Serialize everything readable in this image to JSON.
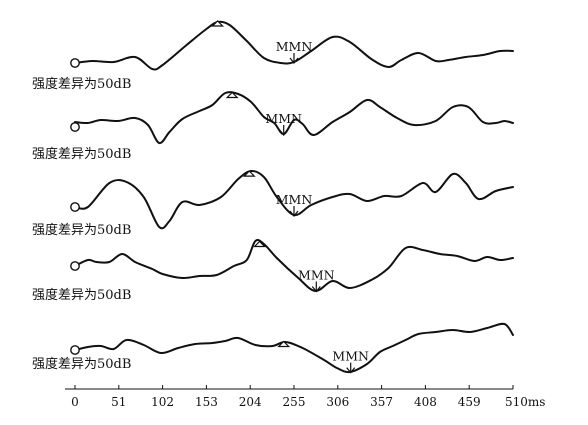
{
  "chart_data": {
    "type": "line",
    "xlabel": "",
    "x_unit": "ms",
    "ylabel": "",
    "xlim": [
      0,
      510
    ],
    "ticks": [
      0,
      51,
      102,
      153,
      204,
      255,
      306,
      357,
      408,
      459,
      510
    ],
    "tick_labels": [
      "0",
      "51",
      "102",
      "153",
      "204",
      "255",
      "306",
      "357",
      "408",
      "459",
      "510ms"
    ],
    "grid": false,
    "series": [
      {
        "label": "强度差异为50dB",
        "mmn_label": "MMN",
        "mmn_ms": 255,
        "peak_ms": 166,
        "points": [
          [
            0,
            0
          ],
          [
            20,
            -2
          ],
          [
            45,
            -1
          ],
          [
            70,
            -6
          ],
          [
            90,
            6
          ],
          [
            102,
            2
          ],
          [
            130,
            -18
          ],
          [
            153,
            -34
          ],
          [
            166,
            -41
          ],
          [
            180,
            -38
          ],
          [
            200,
            -22
          ],
          [
            220,
            -5
          ],
          [
            240,
            0
          ],
          [
            255,
            -1
          ],
          [
            275,
            -12
          ],
          [
            300,
            -26
          ],
          [
            320,
            -21
          ],
          [
            345,
            -4
          ],
          [
            365,
            4
          ],
          [
            380,
            -3
          ],
          [
            400,
            -10
          ],
          [
            420,
            -2
          ],
          [
            435,
            -3
          ],
          [
            455,
            -6
          ],
          [
            475,
            -8
          ],
          [
            495,
            -12
          ],
          [
            510,
            -12
          ]
        ]
      },
      {
        "label": "强度差异为50dB",
        "mmn_label": "MMN",
        "mmn_ms": 243,
        "peak_ms": 183,
        "points": [
          [
            0,
            -5
          ],
          [
            15,
            -4
          ],
          [
            30,
            -7
          ],
          [
            50,
            -6
          ],
          [
            70,
            -9
          ],
          [
            85,
            -2
          ],
          [
            98,
            16
          ],
          [
            110,
            5
          ],
          [
            125,
            -8
          ],
          [
            145,
            -16
          ],
          [
            160,
            -22
          ],
          [
            175,
            -34
          ],
          [
            190,
            -33
          ],
          [
            205,
            -25
          ],
          [
            220,
            -10
          ],
          [
            232,
            -4
          ],
          [
            243,
            7
          ],
          [
            255,
            -7
          ],
          [
            265,
            -3
          ],
          [
            278,
            8
          ],
          [
            300,
            -5
          ],
          [
            320,
            -15
          ],
          [
            340,
            -27
          ],
          [
            355,
            -20
          ],
          [
            375,
            -9
          ],
          [
            395,
            -2
          ],
          [
            420,
            -6
          ],
          [
            440,
            -20
          ],
          [
            458,
            -20
          ],
          [
            475,
            -5
          ],
          [
            490,
            -4
          ],
          [
            500,
            -6
          ],
          [
            510,
            -4
          ]
        ]
      },
      {
        "label": "强度差异为50dB",
        "mmn_label": "MMN",
        "mmn_ms": 255,
        "peak_ms": 203,
        "points": [
          [
            0,
            0
          ],
          [
            15,
            0
          ],
          [
            40,
            -24
          ],
          [
            60,
            -25
          ],
          [
            80,
            -10
          ],
          [
            98,
            20
          ],
          [
            110,
            14
          ],
          [
            125,
            -5
          ],
          [
            145,
            -2
          ],
          [
            170,
            -10
          ],
          [
            190,
            -28
          ],
          [
            205,
            -36
          ],
          [
            220,
            -30
          ],
          [
            235,
            -10
          ],
          [
            255,
            8
          ],
          [
            275,
            -2
          ],
          [
            300,
            -10
          ],
          [
            320,
            -13
          ],
          [
            340,
            -6
          ],
          [
            360,
            -11
          ],
          [
            380,
            -11
          ],
          [
            405,
            -24
          ],
          [
            420,
            -15
          ],
          [
            440,
            -33
          ],
          [
            455,
            -24
          ],
          [
            470,
            -8
          ],
          [
            490,
            -16
          ],
          [
            510,
            -20
          ]
        ]
      },
      {
        "label": "强度差异为50dB",
        "mmn_label": "MMN",
        "mmn_ms": 281,
        "peak_ms": 215,
        "points": [
          [
            0,
            0
          ],
          [
            15,
            -6
          ],
          [
            25,
            -4
          ],
          [
            40,
            -4
          ],
          [
            55,
            -12
          ],
          [
            70,
            -4
          ],
          [
            90,
            3
          ],
          [
            102,
            8
          ],
          [
            125,
            12
          ],
          [
            145,
            10
          ],
          [
            165,
            9
          ],
          [
            185,
            0
          ],
          [
            200,
            -6
          ],
          [
            210,
            -25
          ],
          [
            220,
            -22
          ],
          [
            235,
            -8
          ],
          [
            260,
            12
          ],
          [
            280,
            25
          ],
          [
            300,
            15
          ],
          [
            320,
            22
          ],
          [
            345,
            14
          ],
          [
            365,
            2
          ],
          [
            385,
            -18
          ],
          [
            405,
            -16
          ],
          [
            425,
            -12
          ],
          [
            445,
            -10
          ],
          [
            465,
            -5
          ],
          [
            480,
            -9
          ],
          [
            495,
            -6
          ],
          [
            510,
            -8
          ]
        ]
      },
      {
        "label": "强度差异为50dB",
        "mmn_label": "MMN",
        "mmn_ms": 321,
        "peak_ms": 243,
        "points": [
          [
            0,
            0
          ],
          [
            15,
            -3
          ],
          [
            30,
            -4
          ],
          [
            45,
            -1
          ],
          [
            60,
            -10
          ],
          [
            80,
            -5
          ],
          [
            100,
            3
          ],
          [
            120,
            -2
          ],
          [
            140,
            -6
          ],
          [
            160,
            -7
          ],
          [
            175,
            -9
          ],
          [
            190,
            -12
          ],
          [
            210,
            -5
          ],
          [
            230,
            -4
          ],
          [
            245,
            -8
          ],
          [
            265,
            -2
          ],
          [
            290,
            10
          ],
          [
            305,
            18
          ],
          [
            320,
            22
          ],
          [
            340,
            14
          ],
          [
            355,
            2
          ],
          [
            370,
            -4
          ],
          [
            385,
            -10
          ],
          [
            400,
            -16
          ],
          [
            420,
            -18
          ],
          [
            440,
            -20
          ],
          [
            460,
            -18
          ],
          [
            480,
            -22
          ],
          [
            500,
            -26
          ],
          [
            510,
            -15
          ]
        ]
      }
    ]
  }
}
